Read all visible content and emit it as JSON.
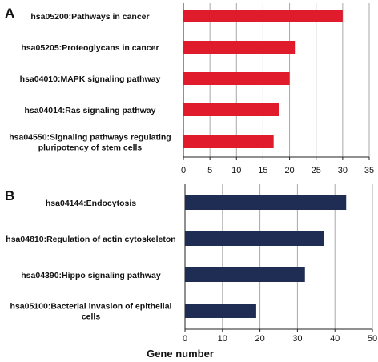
{
  "chart_data": [
    {
      "panel": "A",
      "type": "bar",
      "orientation": "horizontal",
      "categories": [
        [
          "hsa05200:Pathways in cancer"
        ],
        [
          "hsa05205:Proteoglycans in cancer"
        ],
        [
          "hsa04010:MAPK signaling pathway"
        ],
        [
          "hsa04014:Ras signaling pathway"
        ],
        [
          "hsa04550:Signaling pathways regulating",
          "pluripotency of stem cells"
        ]
      ],
      "values": [
        30,
        21,
        20,
        18,
        17
      ],
      "xlim": [
        0,
        35
      ],
      "xticks": [
        "0",
        "5",
        "10",
        "15",
        "20",
        "25",
        "30",
        "35"
      ],
      "grid": true,
      "color": "#e01b2c",
      "xlabel": ""
    },
    {
      "panel": "B",
      "type": "bar",
      "orientation": "horizontal",
      "categories": [
        [
          "hsa04144:Endocytosis"
        ],
        [
          "hsa04810:Regulation of actin cytoskeleton"
        ],
        [
          "hsa04390:Hippo signaling pathway"
        ],
        [
          "hsa05100:Bacterial invasion of epithelial",
          "cells"
        ]
      ],
      "values": [
        43,
        37,
        32,
        19
      ],
      "xlim": [
        0,
        50
      ],
      "xticks": [
        "0",
        "10",
        "20",
        "30",
        "40",
        "50"
      ],
      "grid": true,
      "color": "#1f2d55",
      "xlabel": "Gene number"
    }
  ]
}
